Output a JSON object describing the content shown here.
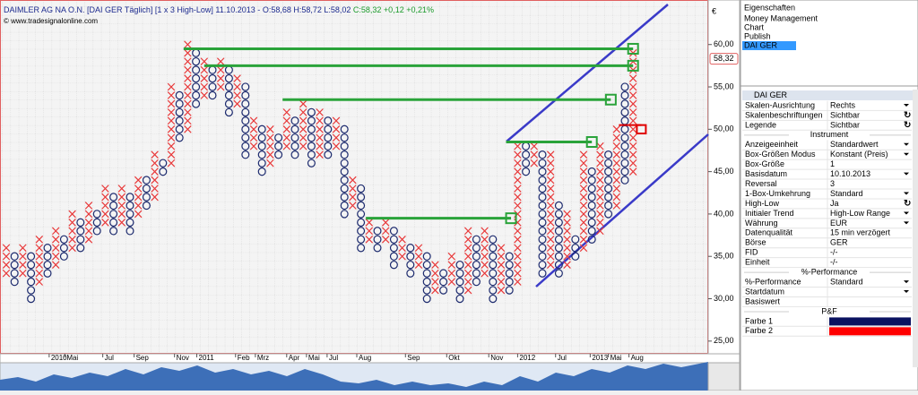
{
  "header": {
    "title": "DAIMLER AG NA O.N. [DAI GER Täglich] [1 x 3 High-Low] 11.10.2013 -",
    "ohl": "O:58,68 H:58,72 L:58,02",
    "close": "C:58,32 +0,12 +0,21%",
    "copyright": "© www.tradesignalonline.com"
  },
  "chart": {
    "type": "point-and-figure",
    "box_size": 1,
    "currency": "€",
    "colors": {
      "X": "#e8393a",
      "O": "#1c2a6e",
      "resistance": "#2aa33a",
      "pending": "#e00000"
    },
    "ylim": [
      23.5,
      64.2
    ],
    "yticks": [
      {
        "value": 25,
        "label": "25,00"
      },
      {
        "value": 30,
        "label": "30,00"
      },
      {
        "value": 35,
        "label": "35,00"
      },
      {
        "value": 40,
        "label": "40,00"
      },
      {
        "value": 45,
        "label": "45,00"
      },
      {
        "value": 50,
        "label": "50,00"
      },
      {
        "value": 55,
        "label": "55,00"
      },
      {
        "value": 60,
        "label": "60,00"
      }
    ],
    "last_price": {
      "value": 58.32,
      "label": "58,32"
    },
    "columns": [
      {
        "type": "X",
        "low": 33,
        "high": 36
      },
      {
        "type": "O",
        "low": 32,
        "high": 35
      },
      {
        "type": "X",
        "low": 33,
        "high": 36
      },
      {
        "type": "O",
        "low": 30,
        "high": 35
      },
      {
        "type": "X",
        "low": 32,
        "high": 37
      },
      {
        "type": "O",
        "low": 33,
        "high": 36
      },
      {
        "type": "X",
        "low": 34,
        "high": 38
      },
      {
        "type": "O",
        "low": 35,
        "high": 37
      },
      {
        "type": "X",
        "low": 36,
        "high": 40
      },
      {
        "type": "O",
        "low": 36,
        "high": 39
      },
      {
        "type": "X",
        "low": 37,
        "high": 41
      },
      {
        "type": "O",
        "low": 38,
        "high": 40
      },
      {
        "type": "X",
        "low": 39,
        "high": 43
      },
      {
        "type": "O",
        "low": 38,
        "high": 42
      },
      {
        "type": "X",
        "low": 39,
        "high": 43
      },
      {
        "type": "O",
        "low": 38,
        "high": 42
      },
      {
        "type": "X",
        "low": 40,
        "high": 44
      },
      {
        "type": "O",
        "low": 41,
        "high": 44
      },
      {
        "type": "X",
        "low": 42,
        "high": 47
      },
      {
        "type": "O",
        "low": 45,
        "high": 46
      },
      {
        "type": "X",
        "low": 46,
        "high": 55
      },
      {
        "type": "O",
        "low": 49,
        "high": 54
      },
      {
        "type": "X",
        "low": 50,
        "high": 60
      },
      {
        "type": "O",
        "low": 53,
        "high": 59
      },
      {
        "type": "X",
        "low": 54,
        "high": 58
      },
      {
        "type": "O",
        "low": 54,
        "high": 57
      },
      {
        "type": "X",
        "low": 55,
        "high": 58
      },
      {
        "type": "O",
        "low": 52,
        "high": 57
      },
      {
        "type": "X",
        "low": 53,
        "high": 56
      },
      {
        "type": "O",
        "low": 47,
        "high": 55
      },
      {
        "type": "X",
        "low": 48,
        "high": 51
      },
      {
        "type": "O",
        "low": 45,
        "high": 50
      },
      {
        "type": "X",
        "low": 46,
        "high": 50
      },
      {
        "type": "O",
        "low": 47,
        "high": 49
      },
      {
        "type": "X",
        "low": 48,
        "high": 52
      },
      {
        "type": "O",
        "low": 47,
        "high": 51
      },
      {
        "type": "X",
        "low": 48,
        "high": 53
      },
      {
        "type": "O",
        "low": 46,
        "high": 52
      },
      {
        "type": "X",
        "low": 47,
        "high": 52
      },
      {
        "type": "O",
        "low": 47,
        "high": 51
      },
      {
        "type": "X",
        "low": 48,
        "high": 51
      },
      {
        "type": "O",
        "low": 40,
        "high": 50
      },
      {
        "type": "X",
        "low": 41,
        "high": 44
      },
      {
        "type": "O",
        "low": 36,
        "high": 43
      },
      {
        "type": "X",
        "low": 37,
        "high": 39
      },
      {
        "type": "O",
        "low": 36,
        "high": 38
      },
      {
        "type": "X",
        "low": 37,
        "high": 39
      },
      {
        "type": "O",
        "low": 34,
        "high": 38
      },
      {
        "type": "X",
        "low": 35,
        "high": 37
      },
      {
        "type": "O",
        "low": 33,
        "high": 36
      },
      {
        "type": "X",
        "low": 34,
        "high": 36
      },
      {
        "type": "O",
        "low": 30,
        "high": 35
      },
      {
        "type": "X",
        "low": 31,
        "high": 34
      },
      {
        "type": "O",
        "low": 31,
        "high": 33
      },
      {
        "type": "X",
        "low": 32,
        "high": 35
      },
      {
        "type": "O",
        "low": 30,
        "high": 34
      },
      {
        "type": "X",
        "low": 31,
        "high": 38
      },
      {
        "type": "O",
        "low": 32,
        "high": 37
      },
      {
        "type": "X",
        "low": 33,
        "high": 38
      },
      {
        "type": "O",
        "low": 30,
        "high": 37
      },
      {
        "type": "X",
        "low": 31,
        "high": 36
      },
      {
        "type": "O",
        "low": 31,
        "high": 35
      },
      {
        "type": "X",
        "low": 32,
        "high": 48
      },
      {
        "type": "O",
        "low": 45,
        "high": 48
      },
      {
        "type": "X",
        "low": 46,
        "high": 48
      },
      {
        "type": "O",
        "low": 33,
        "high": 47
      },
      {
        "type": "X",
        "low": 34,
        "high": 47
      },
      {
        "type": "O",
        "low": 33,
        "high": 41
      },
      {
        "type": "X",
        "low": 34,
        "high": 40
      },
      {
        "type": "O",
        "low": 35,
        "high": 37
      },
      {
        "type": "X",
        "low": 36,
        "high": 47
      },
      {
        "type": "O",
        "low": 37,
        "high": 45
      },
      {
        "type": "X",
        "low": 38,
        "high": 48
      },
      {
        "type": "O",
        "low": 40,
        "high": 47
      },
      {
        "type": "X",
        "low": 41,
        "high": 50
      },
      {
        "type": "O",
        "low": 44,
        "high": 55
      },
      {
        "type": "X",
        "low": 45,
        "high": 59
      }
    ],
    "resistance_levels": [
      {
        "start": 21.5,
        "end": 76,
        "value": 59.5
      },
      {
        "start": 24,
        "end": 76,
        "value": 57.5
      },
      {
        "start": 33.5,
        "end": 73.3,
        "value": 53.5
      },
      {
        "start": 60.6,
        "end": 71,
        "value": 48.5
      },
      {
        "start": 43.6,
        "end": 61.2,
        "value": 39.5
      }
    ],
    "pending_box": {
      "x": 77,
      "value": 50
    },
    "x_labels": [
      {
        "x": 5.2,
        "label": "2010"
      },
      {
        "x": 7.1,
        "label": "Mai"
      },
      {
        "x": 11.7,
        "label": "Jul"
      },
      {
        "x": 15.5,
        "label": "Sep"
      },
      {
        "x": 20.4,
        "label": "Nov"
      },
      {
        "x": 23.1,
        "label": "2011"
      },
      {
        "x": 27.8,
        "label": "Feb"
      },
      {
        "x": 30.2,
        "label": "Mrz"
      },
      {
        "x": 34,
        "label": "Apr"
      },
      {
        "x": 36.4,
        "label": "Mai"
      },
      {
        "x": 38.9,
        "label": "Jul"
      },
      {
        "x": 42.5,
        "label": "Aug"
      },
      {
        "x": 48.4,
        "label": "Sep"
      },
      {
        "x": 53.4,
        "label": "Okt"
      },
      {
        "x": 58.5,
        "label": "Nov"
      },
      {
        "x": 62,
        "label": "2012"
      },
      {
        "x": 66.6,
        "label": "Jul"
      },
      {
        "x": 70.8,
        "label": "2013"
      },
      {
        "x": 73,
        "label": "Mai"
      },
      {
        "x": 75.5,
        "label": "Aug"
      }
    ]
  },
  "panel": {
    "title": "Eigenschaften",
    "tree": [
      {
        "label": "Money Management"
      },
      {
        "label": "Chart"
      },
      {
        "label": "Publish"
      },
      {
        "label": "DAI GER",
        "selected": true
      }
    ],
    "grid_title": "DAI GER",
    "groups": [
      {
        "rows": [
          {
            "label": "Skalen-Ausrichtung",
            "value": "Rechts",
            "control": "dropdown"
          },
          {
            "label": "Skalenbeschriftungen",
            "value": "Sichtbar",
            "control": "toggle"
          },
          {
            "label": "Legende",
            "value": "Sichtbar",
            "control": "toggle"
          }
        ]
      },
      {
        "title": "Instrument",
        "rows": [
          {
            "label": "Anzeigeeinheit",
            "value": "Standardwert",
            "control": "dropdown"
          },
          {
            "label": "Box-Größen Modus",
            "value": "Konstant (Preis)",
            "control": "dropdown"
          },
          {
            "label": "Box-Größe",
            "value": "1"
          },
          {
            "label": "Basisdatum",
            "value": "10.10.2013",
            "muted": true,
            "control": "dropdown"
          },
          {
            "label": "Reversal",
            "value": "3"
          },
          {
            "label": "1-Box-Umkehrung",
            "value": "Standard",
            "muted": true,
            "control": "dropdown"
          },
          {
            "label": "High-Low",
            "value": "Ja",
            "control": "toggle"
          },
          {
            "label": "Initialer Trend",
            "value": "High-Low Range",
            "control": "dropdown"
          },
          {
            "label": "Währung",
            "value": "EUR",
            "control": "dropdown"
          },
          {
            "label": "Datenqualität",
            "value": "15 min verzögert",
            "muted": true
          },
          {
            "label": "Börse",
            "value": "GER",
            "muted": true
          },
          {
            "label": "FID",
            "value": "-/-",
            "muted": true
          },
          {
            "label": "Einheit",
            "value": "-/-",
            "muted": true
          }
        ]
      },
      {
        "title": "%-Performance",
        "rows": [
          {
            "label": "%-Performance",
            "value": "Standard",
            "control": "dropdown"
          },
          {
            "label": "Startdatum",
            "muted": true,
            "control": "dropdown"
          },
          {
            "label": "Basiswert",
            "muted": true
          }
        ]
      },
      {
        "title": "P&F",
        "rows": [
          {
            "label": "Farbe 1",
            "swatch": "#0a1260"
          },
          {
            "label": "Farbe 2",
            "swatch": "#ff0000"
          }
        ]
      }
    ]
  }
}
